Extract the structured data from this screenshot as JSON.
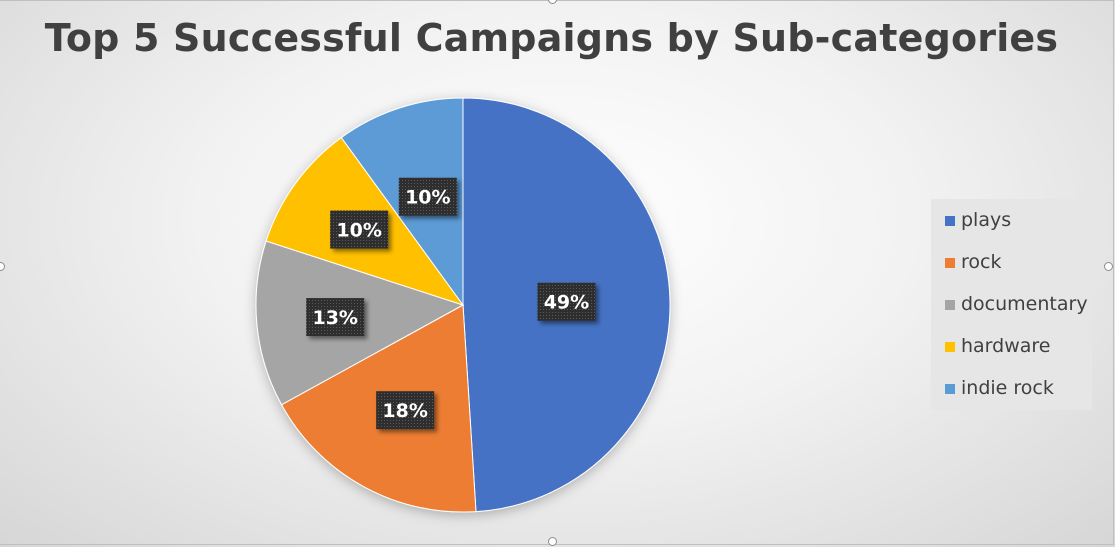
{
  "chart_data": {
    "type": "pie",
    "title": "Top 5 Successful Campaigns by Sub-categories",
    "categories": [
      "plays",
      "rock",
      "documentary",
      "hardware",
      "indie rock"
    ],
    "values": [
      49,
      18,
      13,
      10,
      10
    ],
    "value_labels": [
      "49%",
      "18%",
      "13%",
      "10%",
      "10%"
    ],
    "colors": [
      "#4472C4",
      "#ED7D31",
      "#A5A5A5",
      "#FFC000",
      "#5B9BD5"
    ],
    "legend": "right"
  }
}
